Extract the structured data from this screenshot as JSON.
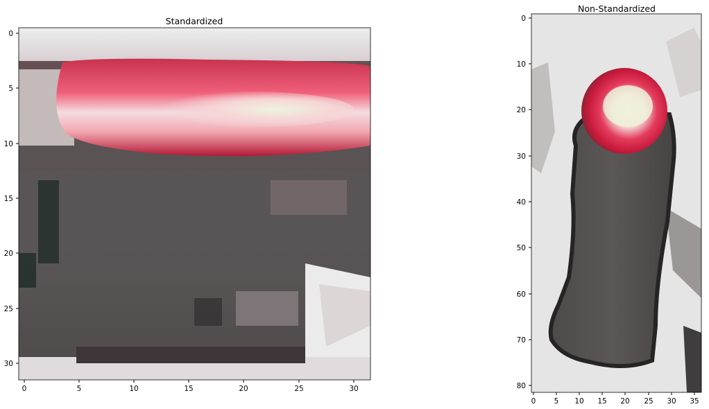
{
  "panels": [
    {
      "title": "Standardized",
      "x_ticks": [
        0,
        5,
        10,
        15,
        20,
        25,
        30
      ],
      "y_ticks": [
        0,
        5,
        10,
        15,
        20,
        25,
        30
      ],
      "image_size": [
        32,
        32
      ]
    },
    {
      "title": "Non-Standardized",
      "x_ticks": [
        0,
        5,
        10,
        15,
        20,
        25,
        30,
        35
      ],
      "y_ticks": [
        0,
        10,
        20,
        30,
        40,
        50,
        60,
        70,
        80
      ],
      "image_size": [
        37,
        82
      ]
    }
  ],
  "colors": {
    "light_bg": "#e8e6e6",
    "red_light": "#d8284a",
    "hot_center": "#eef0d8",
    "housing_dark": "#57504f",
    "outline": "#2a2a2a"
  }
}
